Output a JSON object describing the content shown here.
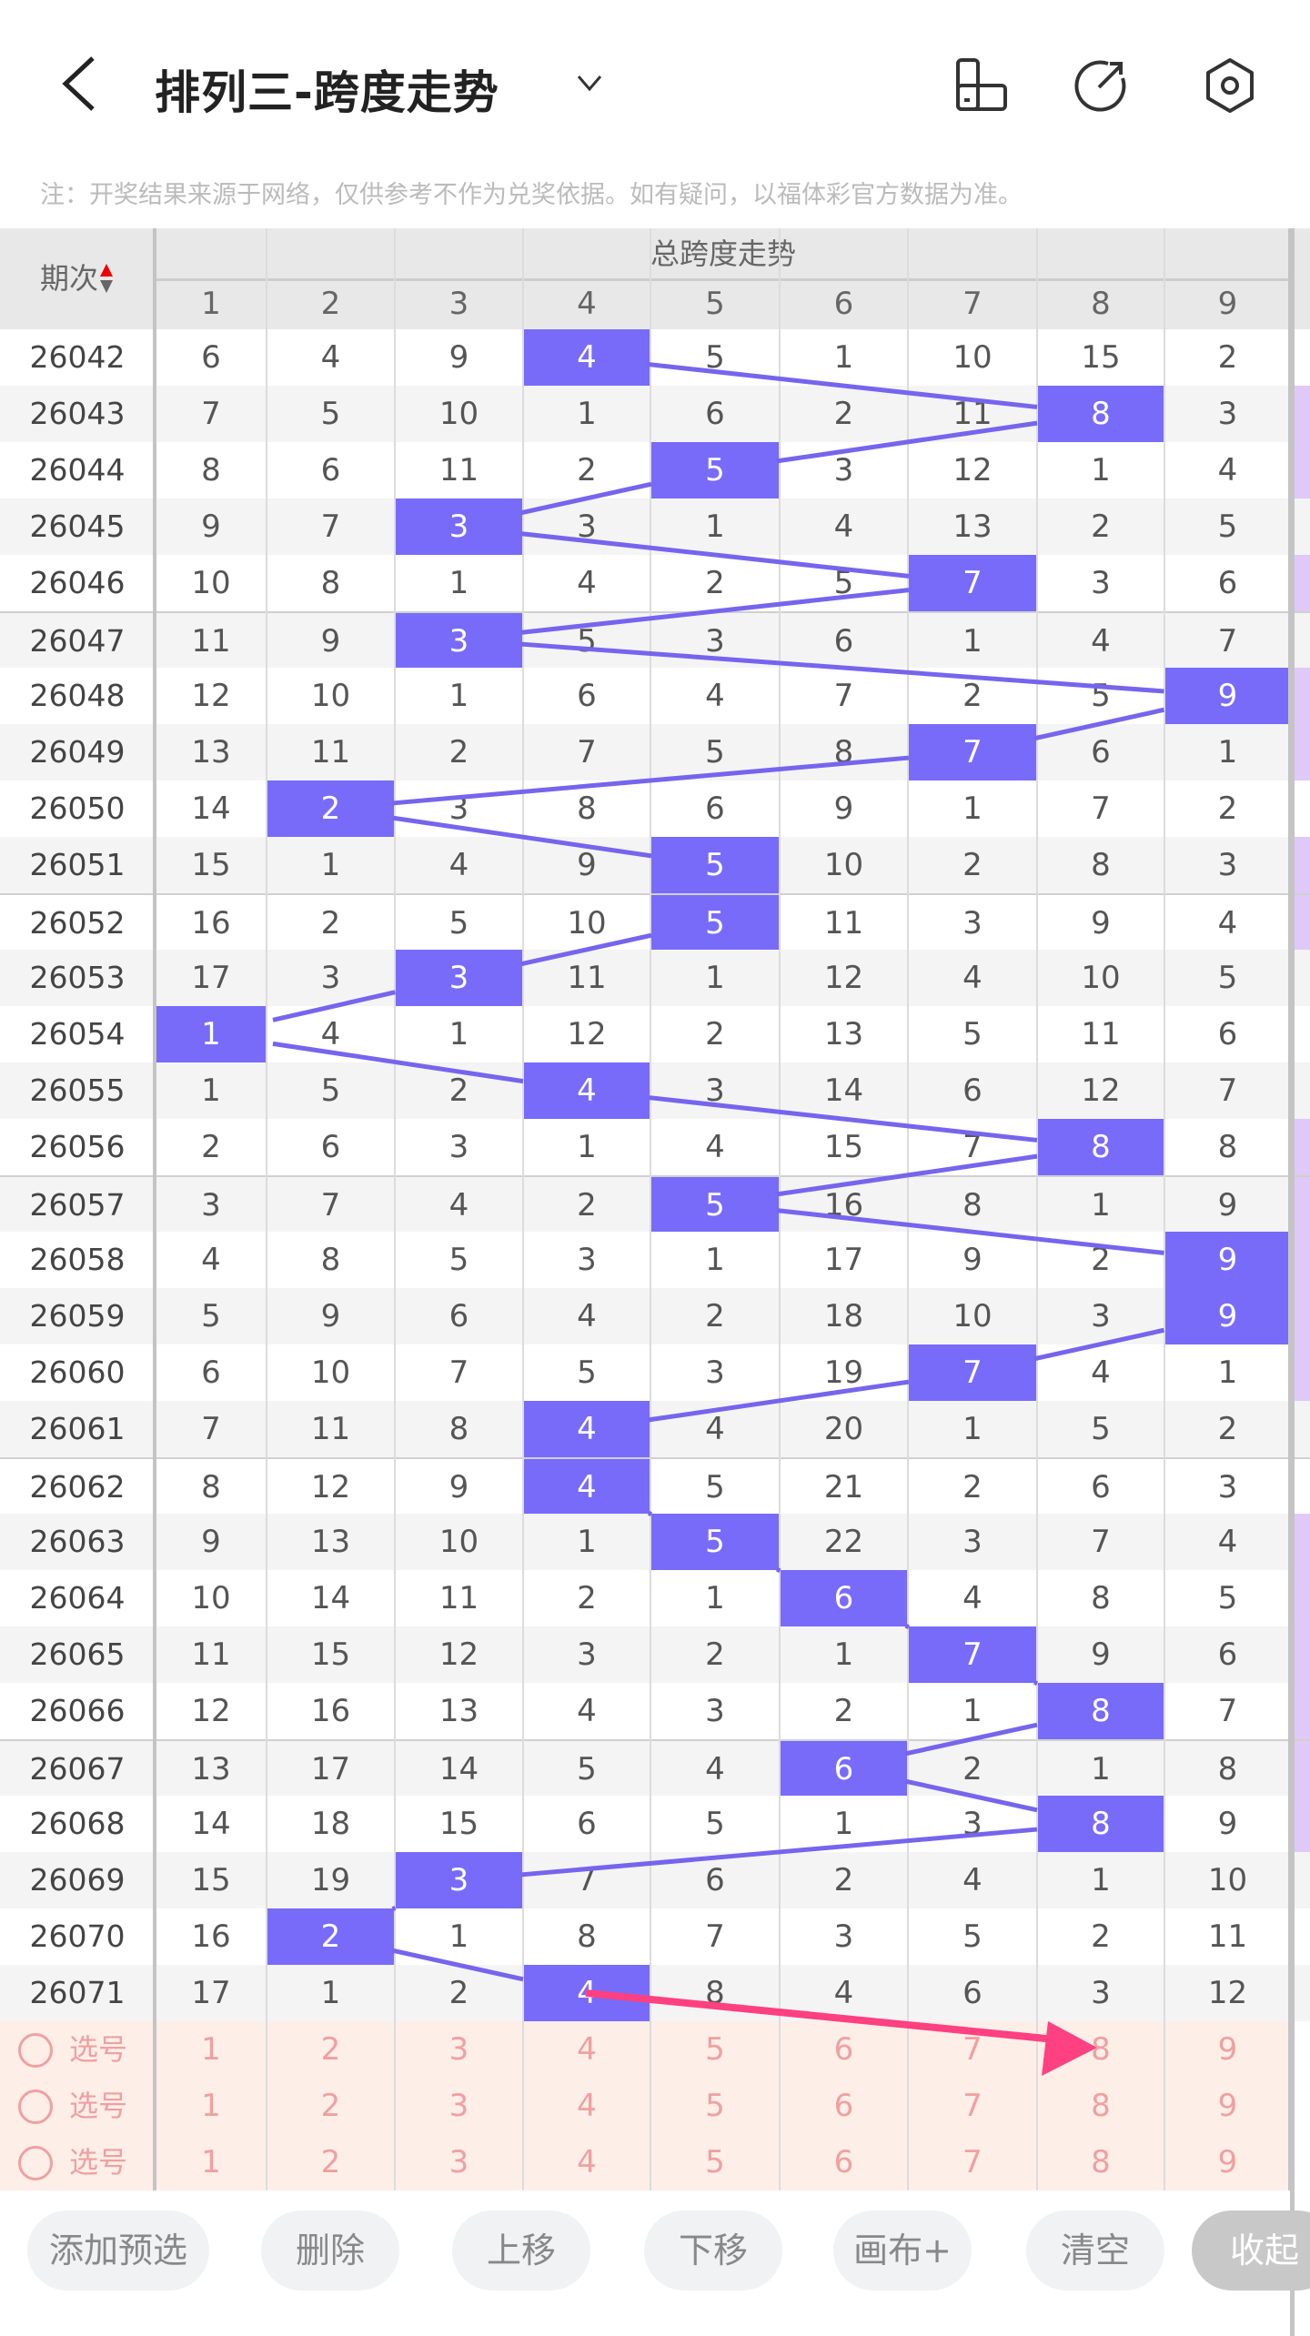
{
  "header": {
    "title": "排列三-跨度走势",
    "note": "注：开奖结果来源于网络，仅供参考不作为兑奖依据。如有疑问，以福体彩官方数据为准。"
  },
  "table": {
    "period_header": "期次",
    "group_header": "总跨度走势",
    "columns": [
      "1",
      "2",
      "3",
      "4",
      "5",
      "6",
      "7",
      "8",
      "9"
    ],
    "rows": [
      {
        "period": "26042",
        "values": [
          6,
          4,
          9,
          4,
          5,
          1,
          10,
          15,
          2
        ],
        "hit": 4,
        "next_col_hit": false
      },
      {
        "period": "26043",
        "values": [
          7,
          5,
          10,
          1,
          6,
          2,
          11,
          8,
          3
        ],
        "hit": 8,
        "next_col_hit": true
      },
      {
        "period": "26044",
        "values": [
          8,
          6,
          11,
          2,
          5,
          3,
          12,
          1,
          4
        ],
        "hit": 5,
        "next_col_hit": true
      },
      {
        "period": "26045",
        "values": [
          9,
          7,
          3,
          3,
          1,
          4,
          13,
          2,
          5
        ],
        "hit": 3,
        "next_col_hit": false
      },
      {
        "period": "26046",
        "values": [
          10,
          8,
          1,
          4,
          2,
          5,
          7,
          3,
          6
        ],
        "hit": 7,
        "next_col_hit": true
      },
      {
        "period": "26047",
        "values": [
          11,
          9,
          3,
          5,
          3,
          6,
          1,
          4,
          7
        ],
        "hit": 3,
        "next_col_hit": false
      },
      {
        "period": "26048",
        "values": [
          12,
          10,
          1,
          6,
          4,
          7,
          2,
          5,
          9
        ],
        "hit": 9,
        "next_col_hit": true
      },
      {
        "period": "26049",
        "values": [
          13,
          11,
          2,
          7,
          5,
          8,
          7,
          6,
          1
        ],
        "hit": 7,
        "next_col_hit": true
      },
      {
        "period": "26050",
        "values": [
          14,
          2,
          3,
          8,
          6,
          9,
          1,
          7,
          2
        ],
        "hit": 2,
        "next_col_hit": false
      },
      {
        "period": "26051",
        "values": [
          15,
          1,
          4,
          9,
          5,
          10,
          2,
          8,
          3
        ],
        "hit": 5,
        "next_col_hit": true
      },
      {
        "period": "26052",
        "values": [
          16,
          2,
          5,
          10,
          5,
          11,
          3,
          9,
          4
        ],
        "hit": 5,
        "next_col_hit": true
      },
      {
        "period": "26053",
        "values": [
          17,
          3,
          3,
          11,
          1,
          12,
          4,
          10,
          5
        ],
        "hit": 3,
        "next_col_hit": false
      },
      {
        "period": "26054",
        "values": [
          1,
          4,
          1,
          12,
          2,
          13,
          5,
          11,
          6
        ],
        "hit": 1,
        "next_col_hit": false
      },
      {
        "period": "26055",
        "values": [
          1,
          5,
          2,
          4,
          3,
          14,
          6,
          12,
          7
        ],
        "hit": 4,
        "next_col_hit": false
      },
      {
        "period": "26056",
        "values": [
          2,
          6,
          3,
          1,
          4,
          15,
          7,
          8,
          8
        ],
        "hit": 8,
        "next_col_hit": true
      },
      {
        "period": "26057",
        "values": [
          3,
          7,
          4,
          2,
          5,
          16,
          8,
          1,
          9
        ],
        "hit": 5,
        "next_col_hit": true
      },
      {
        "period": "26058",
        "values": [
          4,
          8,
          5,
          3,
          1,
          17,
          9,
          2,
          9
        ],
        "hit": 9,
        "next_col_hit": true
      },
      {
        "period": "26059",
        "values": [
          5,
          9,
          6,
          4,
          2,
          18,
          10,
          3,
          9
        ],
        "hit": 9,
        "next_col_hit": true
      },
      {
        "period": "26060",
        "values": [
          6,
          10,
          7,
          5,
          3,
          19,
          7,
          4,
          1
        ],
        "hit": 7,
        "next_col_hit": true
      },
      {
        "period": "26061",
        "values": [
          7,
          11,
          8,
          4,
          4,
          20,
          1,
          5,
          2
        ],
        "hit": 4,
        "next_col_hit": false
      },
      {
        "period": "26062",
        "values": [
          8,
          12,
          9,
          4,
          5,
          21,
          2,
          6,
          3
        ],
        "hit": 4,
        "next_col_hit": false
      },
      {
        "period": "26063",
        "values": [
          9,
          13,
          10,
          1,
          5,
          22,
          3,
          7,
          4
        ],
        "hit": 5,
        "next_col_hit": true
      },
      {
        "period": "26064",
        "values": [
          10,
          14,
          11,
          2,
          1,
          6,
          4,
          8,
          5
        ],
        "hit": 6,
        "next_col_hit": true
      },
      {
        "period": "26065",
        "values": [
          11,
          15,
          12,
          3,
          2,
          1,
          7,
          9,
          6
        ],
        "hit": 7,
        "next_col_hit": true
      },
      {
        "period": "26066",
        "values": [
          12,
          16,
          13,
          4,
          3,
          2,
          1,
          8,
          7
        ],
        "hit": 8,
        "next_col_hit": true
      },
      {
        "period": "26067",
        "values": [
          13,
          17,
          14,
          5,
          4,
          6,
          2,
          1,
          8
        ],
        "hit": 6,
        "next_col_hit": true
      },
      {
        "period": "26068",
        "values": [
          14,
          18,
          15,
          6,
          5,
          1,
          3,
          8,
          9
        ],
        "hit": 8,
        "next_col_hit": true
      },
      {
        "period": "26069",
        "values": [
          15,
          19,
          3,
          7,
          6,
          2,
          4,
          1,
          10
        ],
        "hit": 3,
        "next_col_hit": false
      },
      {
        "period": "26070",
        "values": [
          16,
          2,
          1,
          8,
          7,
          3,
          5,
          2,
          11
        ],
        "hit": 2,
        "next_col_hit": false
      },
      {
        "period": "26071",
        "values": [
          17,
          1,
          2,
          4,
          8,
          4,
          6,
          3,
          12
        ],
        "hit": 4,
        "next_col_hit": false
      }
    ],
    "select_rows": [
      {
        "label": "选号",
        "options": [
          "1",
          "2",
          "3",
          "4",
          "5",
          "6",
          "7",
          "8",
          "9"
        ]
      },
      {
        "label": "选号",
        "options": [
          "1",
          "2",
          "3",
          "4",
          "5",
          "6",
          "7",
          "8",
          "9"
        ]
      },
      {
        "label": "选号",
        "options": [
          "1",
          "2",
          "3",
          "4",
          "5",
          "6",
          "7",
          "8",
          "9"
        ]
      }
    ]
  },
  "toolbar": {
    "buttons": [
      "添加预选",
      "删除",
      "上移",
      "下移",
      "画布+",
      "清空",
      "收起"
    ]
  },
  "colors": {
    "hit": "#786bfa",
    "line": "#7565ee",
    "arrow": "#ff4081",
    "next_hit": "#e0c8f8",
    "select_bg": "#fdeee8"
  }
}
